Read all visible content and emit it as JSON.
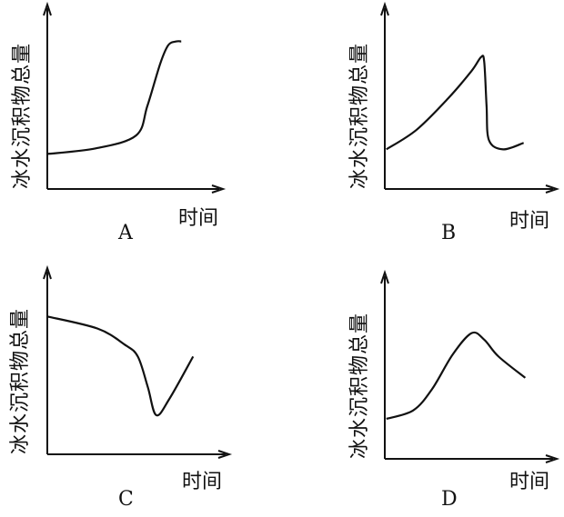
{
  "chart_data": [
    {
      "type": "line",
      "panel": "A",
      "ylabel": "冰水沉积物总量",
      "xlabel": "时间",
      "xlim": [
        0,
        10
      ],
      "ylim": [
        0,
        10
      ],
      "points": [
        [
          0,
          1.9
        ],
        [
          3,
          2.2
        ],
        [
          5.5,
          2.9
        ],
        [
          6.2,
          4.5
        ],
        [
          7,
          6.8
        ],
        [
          7.5,
          7.8
        ],
        [
          8,
          8
        ],
        [
          8.3,
          8
        ]
      ]
    },
    {
      "type": "line",
      "panel": "B",
      "ylabel": "冰水沉积物总量",
      "xlabel": "时间",
      "xlim": [
        0,
        10
      ],
      "ylim": [
        0,
        10
      ],
      "points": [
        [
          0.1,
          2.15
        ],
        [
          2,
          3.2
        ],
        [
          4,
          4.9
        ],
        [
          5.5,
          6.4
        ],
        [
          6.1,
          7.15
        ],
        [
          6.3,
          6.9
        ],
        [
          6.45,
          4.5
        ],
        [
          6.6,
          2.65
        ],
        [
          7.5,
          2.15
        ],
        [
          8.8,
          2.5
        ]
      ]
    },
    {
      "type": "line",
      "panel": "C",
      "ylabel": "冰水沉积物总量",
      "xlabel": "时间",
      "xlim": [
        0,
        10
      ],
      "ylim": [
        0,
        10
      ],
      "points": [
        [
          0,
          7.4
        ],
        [
          3,
          6.75
        ],
        [
          4.6,
          5.9
        ],
        [
          5.4,
          5.25
        ],
        [
          6,
          3.6
        ],
        [
          6.5,
          2.1
        ],
        [
          7.3,
          3
        ],
        [
          8.7,
          5.25
        ]
      ]
    },
    {
      "type": "line",
      "panel": "D",
      "ylabel": "冰水沉积物总量",
      "xlabel": "时间",
      "xlim": [
        0,
        10
      ],
      "ylim": [
        0,
        10
      ],
      "points": [
        [
          0.1,
          2.15
        ],
        [
          1.8,
          2.6
        ],
        [
          3,
          3.75
        ],
        [
          4.3,
          5.6
        ],
        [
          5.5,
          6.75
        ],
        [
          6.3,
          6.4
        ],
        [
          7.2,
          5.5
        ],
        [
          8.9,
          4.35
        ]
      ]
    }
  ]
}
